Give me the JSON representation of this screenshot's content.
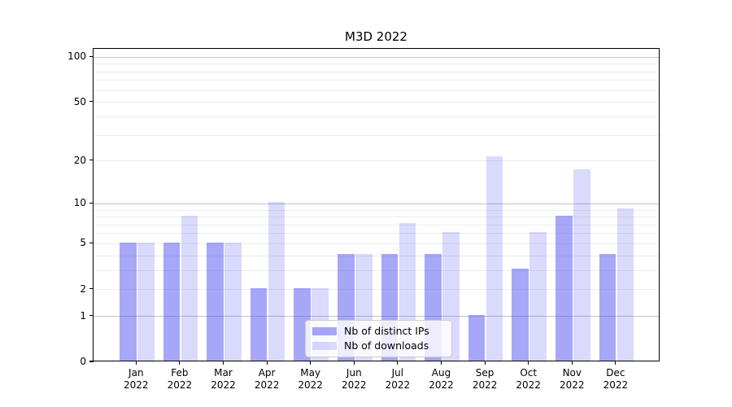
{
  "chart_data": {
    "type": "bar",
    "title": "M3D 2022",
    "categories": [
      "Jan 2022",
      "Feb 2022",
      "Mar 2022",
      "Apr 2022",
      "May 2022",
      "Jun 2022",
      "Jul 2022",
      "Aug 2022",
      "Sep 2022",
      "Oct 2022",
      "Nov 2022",
      "Dec 2022"
    ],
    "series": [
      {
        "name": "Nb of distinct IPs",
        "color": "rgba(80,80,242,0.50)",
        "values": [
          5,
          5,
          5,
          2,
          2,
          4,
          4,
          4,
          1,
          3,
          8,
          4
        ]
      },
      {
        "name": "Nb of downloads",
        "color": "rgba(80,80,242,0.21)",
        "values": [
          5,
          8,
          5,
          10,
          2,
          4,
          7,
          6,
          21,
          6,
          17,
          9
        ]
      }
    ],
    "xlabel": "",
    "ylabel": "",
    "y_scale": "log10(value+1)",
    "ylim": [
      0,
      114
    ],
    "y_tick_labels": [
      "0",
      "1",
      "2",
      "5",
      "10",
      "20",
      "50",
      "100"
    ],
    "y_ticks": [
      0,
      1,
      2,
      5,
      10,
      20,
      50,
      100
    ],
    "y_major_gridlines": [
      1,
      10,
      100
    ],
    "y_minor_gridlines": [
      2,
      3,
      4,
      5,
      6,
      7,
      8,
      9,
      20,
      30,
      40,
      50,
      60,
      70,
      80,
      90
    ],
    "grid": "horizontal",
    "legend_position": "lower center",
    "colors": {
      "bar_dark": "rgba(80,80,242,0.50)",
      "bar_light": "rgba(80,80,242,0.21)",
      "major_grid": "#c4c4c4",
      "minor_grid": "#ececec",
      "axis": "#000000",
      "legend_border": "#cccccc",
      "legend_background": "rgba(255,255,255,0.8)"
    }
  }
}
